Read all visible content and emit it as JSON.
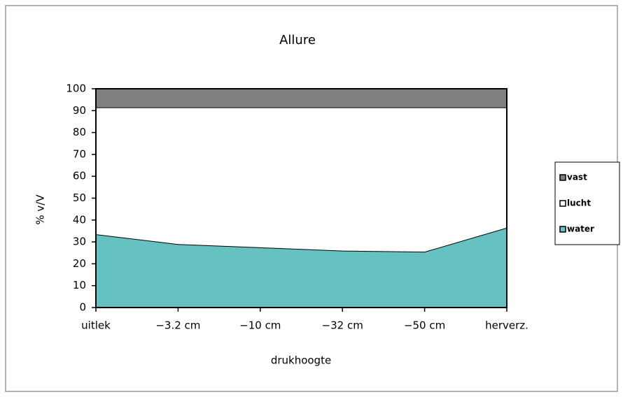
{
  "chart_data": {
    "type": "stacked_area",
    "title": "Allure",
    "x_label": "drukhoogte",
    "y_label": "% v/V",
    "categories": [
      "uitlek",
      "−3.2 cm",
      "−10 cm",
      "−32 cm",
      "−50 cm",
      "herverz."
    ],
    "series": [
      {
        "name": "water",
        "color": "#66c2c0",
        "values": [
          33.5,
          29,
          27.5,
          26,
          25.5,
          36.5
        ]
      },
      {
        "name": "lucht",
        "color": "#ffffff",
        "values": [
          58,
          62.5,
          64,
          65.5,
          66,
          55
        ]
      },
      {
        "name": "vast",
        "color": "#808080",
        "values": [
          8.5,
          8.5,
          8.5,
          8.5,
          8.5,
          8.5
        ]
      }
    ],
    "ylim": [
      0,
      100
    ],
    "yticks": [
      0,
      10,
      20,
      30,
      40,
      50,
      60,
      70,
      80,
      90,
      100
    ],
    "legend": "right"
  }
}
